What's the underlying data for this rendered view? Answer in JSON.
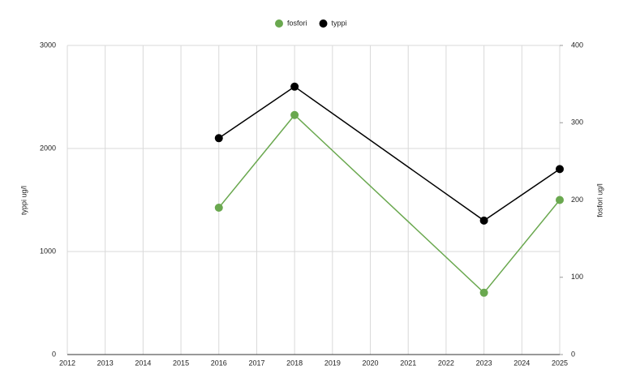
{
  "chart_data": {
    "type": "line",
    "x": [
      2016,
      2018,
      2023,
      2025
    ],
    "series": [
      {
        "name": "fosfori",
        "color": "#6aa84f",
        "values": [
          190,
          310,
          80,
          200
        ],
        "axis": "y2"
      },
      {
        "name": "typpi",
        "color": "#000000",
        "values": [
          2100,
          2600,
          1300,
          1800
        ]
      }
    ],
    "xlim": [
      2012,
      2025
    ],
    "xticks": [
      2012,
      2013,
      2014,
      2015,
      2016,
      2017,
      2018,
      2019,
      2020,
      2021,
      2022,
      2023,
      2024,
      2025
    ],
    "ylim": [
      0,
      3000
    ],
    "yticks": [
      0,
      1000,
      2000,
      3000
    ],
    "y2lim": [
      0,
      400
    ],
    "y2ticks": [
      0,
      100,
      200,
      300,
      400
    ],
    "ylabel": "typpi ug/l",
    "y2label": "fosfori ug/l",
    "grid": true
  }
}
